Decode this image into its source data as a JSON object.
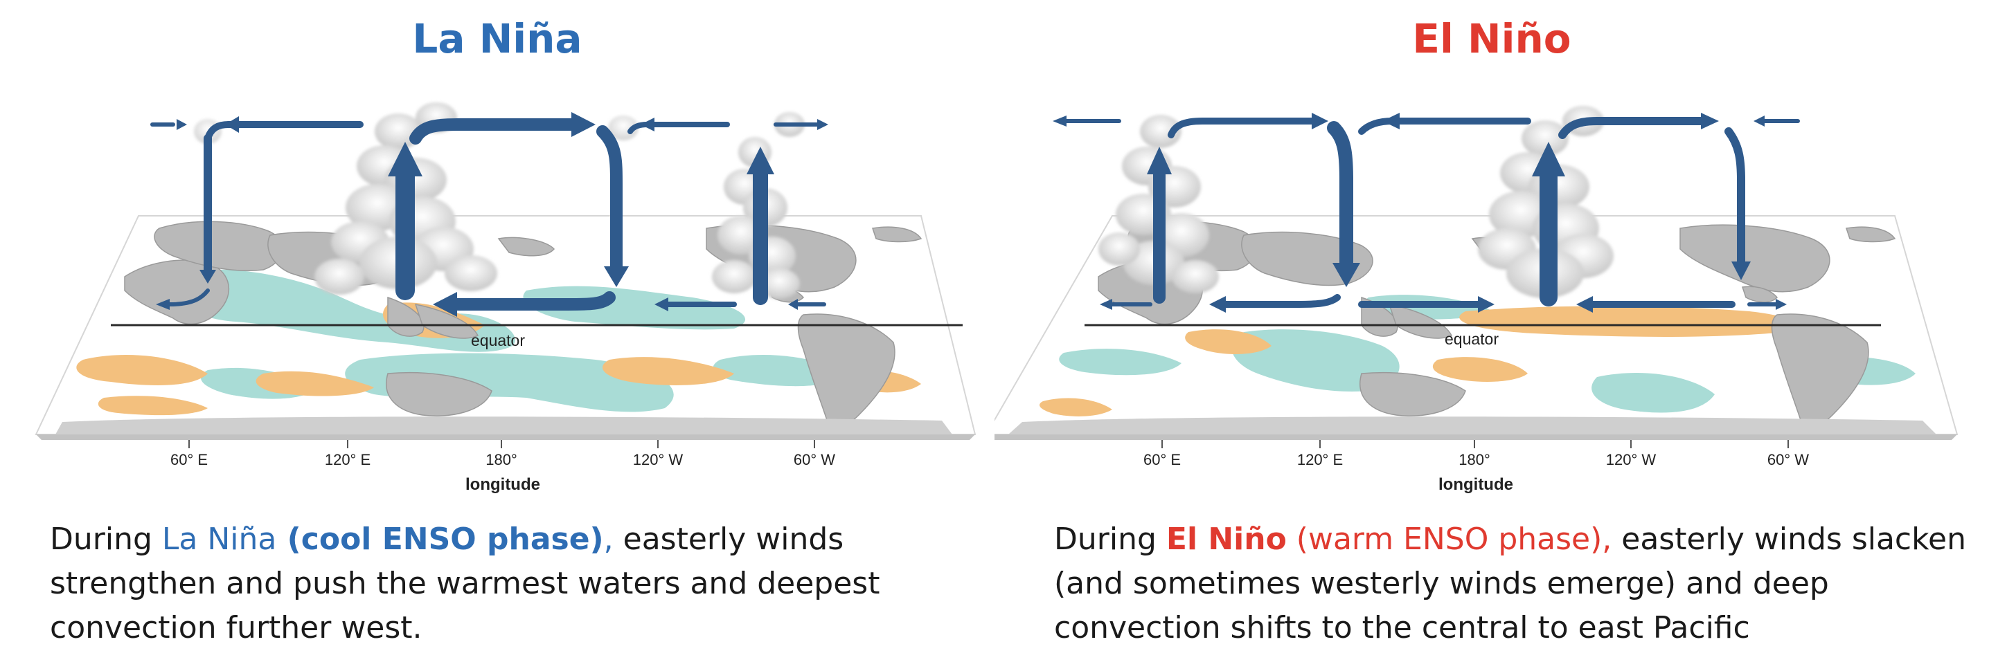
{
  "colors": {
    "la_nina": "#2e6db4",
    "el_nino": "#e03a2f",
    "arrow": "#2f5a8c",
    "warm_anomaly": "#f3c07e",
    "cool_anomaly": "#a9dcd6",
    "land": "#b9b9b9"
  },
  "panels": [
    {
      "title": "La Niña",
      "equator_label": "equator",
      "axis_label": "longitude",
      "ticks": [
        "60° E",
        "120° E",
        "180°",
        "120° W",
        "60° W"
      ],
      "caption": {
        "p1": "During ",
        "p2": "La Niña",
        "p3": " (cool ENSO phase)",
        "p4": ",",
        "p5": " easterly winds strengthen and push the warmest waters and deepest convection further west."
      }
    },
    {
      "title": "El Niño",
      "equator_label": "equator",
      "axis_label": "longitude",
      "ticks": [
        "60° E",
        "120° E",
        "180°",
        "120° W",
        "60° W"
      ],
      "caption": {
        "p1": "During ",
        "p2": "El Niño",
        "p3": " (warm ENSO phase),",
        "p4": " easterly winds slacken (and sometimes westerly winds emerge) and deep convection shifts to the central to east Pacific"
      }
    }
  ]
}
